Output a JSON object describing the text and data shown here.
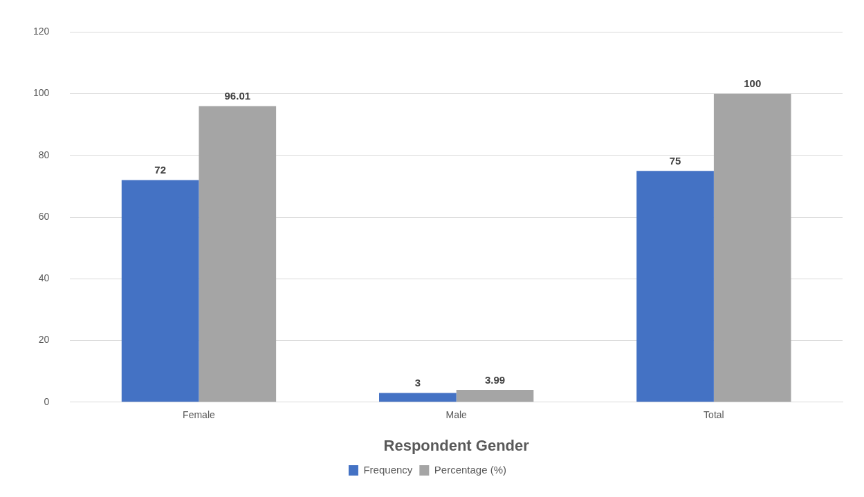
{
  "chart_data": {
    "type": "bar",
    "xlabel": "Respondent Gender",
    "categories": [
      "Female",
      "Male",
      "Total"
    ],
    "series": [
      {
        "name": "Frequency",
        "color": "#4472c4",
        "values": [
          72,
          3,
          75
        ]
      },
      {
        "name": "Percentage (%)",
        "color": "#a5a5a5",
        "values": [
          96.01,
          3.99,
          100
        ]
      }
    ],
    "ylim": [
      0,
      120
    ],
    "yticks": [
      0,
      20,
      40,
      60,
      80,
      100,
      120
    ],
    "grid": "y",
    "legend": "bottom",
    "data_labels": true
  }
}
